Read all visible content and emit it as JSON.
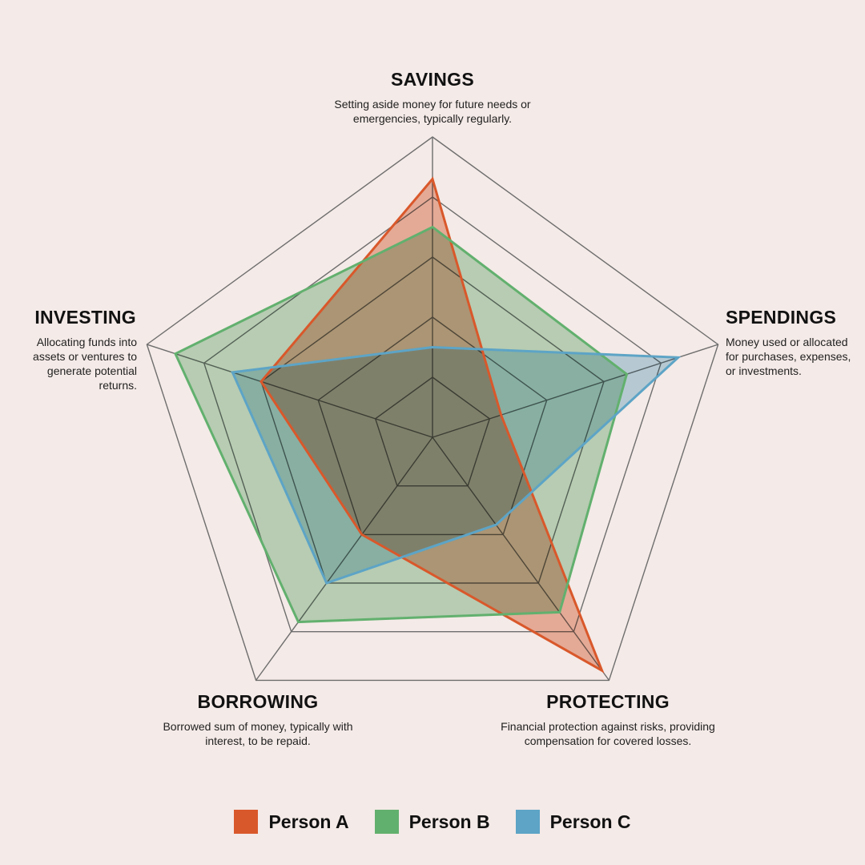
{
  "chart_data": {
    "type": "radar",
    "title": "",
    "axes": [
      {
        "key": "savings",
        "label": "SAVINGS",
        "description": "Setting aside money for future needs or emergencies, typically regularly."
      },
      {
        "key": "spendings",
        "label": "SPENDINGS",
        "description": "Money used or allocated for purchases, expenses, or investments."
      },
      {
        "key": "protecting",
        "label": "PROTECTING",
        "description": "Financial protection against risks, providing compensation for covered losses."
      },
      {
        "key": "borrowing",
        "label": "BORROWING",
        "description": "Borrowed sum of money, typically with interest, to be repaid."
      },
      {
        "key": "investing",
        "label": "INVESTING",
        "description": "Allocating funds into assets or ventures to generate potential returns."
      }
    ],
    "rmax": 5,
    "grid_levels": [
      1,
      2,
      3,
      4,
      5
    ],
    "series": [
      {
        "name": "Person A",
        "color": "#D9582B",
        "fill_opacity": 0.42,
        "values": [
          4.3,
          1.2,
          4.8,
          2.0,
          3.0
        ]
      },
      {
        "name": "Person B",
        "color": "#62B06E",
        "fill_opacity": 0.4,
        "values": [
          3.5,
          3.4,
          3.6,
          3.8,
          4.5
        ]
      },
      {
        "name": "Person C",
        "color": "#5DA4C6",
        "fill_opacity": 0.4,
        "values": [
          1.5,
          4.3,
          1.8,
          3.0,
          3.5
        ]
      }
    ],
    "legend_position": "bottom"
  }
}
